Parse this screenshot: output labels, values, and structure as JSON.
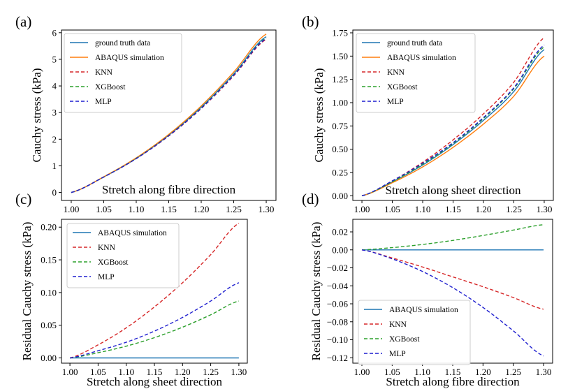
{
  "chart_data": [
    {
      "type": "line",
      "panel_label": "(a)",
      "xlabel": "Stretch along fibre direction",
      "ylabel": "Cauchy stress (kPa)",
      "xlim": [
        0.985,
        1.315
      ],
      "ylim": [
        -0.3,
        6.1
      ],
      "xticks": [
        1.0,
        1.05,
        1.1,
        1.15,
        1.2,
        1.25,
        1.3
      ],
      "xtick_labels": [
        "1.00",
        "1.05",
        "1.10",
        "1.15",
        "1.20",
        "1.25",
        "1.30"
      ],
      "yticks": [
        0,
        1,
        2,
        3,
        4,
        5,
        6
      ],
      "ytick_labels": [
        "0",
        "1",
        "2",
        "3",
        "4",
        "5",
        "6"
      ],
      "legend_position": "top-left",
      "x": [
        1.0,
        1.05,
        1.1,
        1.15,
        1.2,
        1.25,
        1.3
      ],
      "series": [
        {
          "name": "ground truth data",
          "color": "#1f77b4",
          "dash": false,
          "values": [
            0,
            0.58,
            1.28,
            2.15,
            3.2,
            4.45,
            5.85
          ]
        },
        {
          "name": "ABAQUS simulation",
          "color": "#ff7f0e",
          "dash": false,
          "values": [
            0,
            0.59,
            1.3,
            2.18,
            3.25,
            4.52,
            5.95
          ]
        },
        {
          "name": "KNN",
          "color": "#d62728",
          "dash": true,
          "values": [
            0,
            0.58,
            1.27,
            2.12,
            3.15,
            4.38,
            5.75
          ]
        },
        {
          "name": "XGBoost",
          "color": "#2ca02c",
          "dash": true,
          "values": [
            0,
            0.58,
            1.28,
            2.14,
            3.18,
            4.42,
            5.8
          ]
        },
        {
          "name": "MLP",
          "color": "#1f1fcf",
          "dash": true,
          "values": [
            0,
            0.58,
            1.27,
            2.13,
            3.16,
            4.4,
            5.78
          ]
        }
      ]
    },
    {
      "type": "line",
      "panel_label": "(b)",
      "xlabel": "Stretch along sheet direction",
      "ylabel": "Cauchy stress (kPa)",
      "xlim": [
        0.985,
        1.315
      ],
      "ylim": [
        -0.05,
        1.78
      ],
      "xticks": [
        1.0,
        1.05,
        1.1,
        1.15,
        1.2,
        1.25,
        1.3
      ],
      "xtick_labels": [
        "1.00",
        "1.05",
        "1.10",
        "1.15",
        "1.20",
        "1.25",
        "1.30"
      ],
      "yticks": [
        0,
        0.25,
        0.5,
        0.75,
        1.0,
        1.25,
        1.5,
        1.75
      ],
      "ytick_labels": [
        "0.00",
        "0.25",
        "0.50",
        "0.75",
        "1.00",
        "1.25",
        "1.50",
        "1.75"
      ],
      "legend_position": "top-left",
      "x": [
        1.0,
        1.05,
        1.1,
        1.15,
        1.2,
        1.25,
        1.3
      ],
      "series": [
        {
          "name": "ground truth data",
          "color": "#1f77b4",
          "dash": false,
          "values": [
            0,
            0.15,
            0.33,
            0.55,
            0.81,
            1.12,
            1.57
          ]
        },
        {
          "name": "ABAQUS simulation",
          "color": "#ff7f0e",
          "dash": false,
          "values": [
            0,
            0.14,
            0.31,
            0.52,
            0.77,
            1.07,
            1.5
          ]
        },
        {
          "name": "KNN",
          "color": "#d62728",
          "dash": true,
          "values": [
            0,
            0.16,
            0.36,
            0.6,
            0.88,
            1.22,
            1.7
          ]
        },
        {
          "name": "XGBoost",
          "color": "#2ca02c",
          "dash": true,
          "values": [
            0,
            0.15,
            0.34,
            0.56,
            0.83,
            1.15,
            1.6
          ]
        },
        {
          "name": "MLP",
          "color": "#1f1fcf",
          "dash": true,
          "values": [
            0,
            0.16,
            0.35,
            0.57,
            0.84,
            1.16,
            1.62
          ]
        }
      ]
    },
    {
      "type": "line",
      "panel_label": "(c)",
      "xlabel": "Stretch along sheet direction",
      "ylabel": "Residual Cauchy stress (kPa)",
      "xlim": [
        0.985,
        1.315
      ],
      "ylim": [
        -0.008,
        0.212
      ],
      "xticks": [
        1.0,
        1.05,
        1.1,
        1.15,
        1.2,
        1.25,
        1.3
      ],
      "xtick_labels": [
        "1.00",
        "1.05",
        "1.10",
        "1.15",
        "1.20",
        "1.25",
        "1.30"
      ],
      "yticks": [
        0,
        0.05,
        0.1,
        0.15,
        0.2
      ],
      "ytick_labels": [
        "0.00",
        "0.05",
        "0.10",
        "0.15",
        "0.20"
      ],
      "legend_position": "top-left",
      "x": [
        1.0,
        1.05,
        1.1,
        1.15,
        1.2,
        1.25,
        1.3
      ],
      "series": [
        {
          "name": "ABAQUS simulation",
          "color": "#1f77b4",
          "dash": false,
          "values": [
            0,
            0,
            0,
            0,
            0,
            0,
            0
          ]
        },
        {
          "name": "KNN",
          "color": "#d62728",
          "dash": true,
          "values": [
            0,
            0.02,
            0.046,
            0.078,
            0.115,
            0.158,
            0.206
          ]
        },
        {
          "name": "XGBoost",
          "color": "#2ca02c",
          "dash": true,
          "values": [
            0,
            0.008,
            0.018,
            0.031,
            0.047,
            0.066,
            0.087
          ]
        },
        {
          "name": "MLP",
          "color": "#1f1fcf",
          "dash": true,
          "values": [
            0,
            0.011,
            0.024,
            0.041,
            0.062,
            0.087,
            0.115
          ]
        }
      ]
    },
    {
      "type": "line",
      "panel_label": "(d)",
      "xlabel": "Stretch along fibre direction",
      "ylabel": "Residual Cauchy stress (kPa)",
      "xlim": [
        0.985,
        1.315
      ],
      "ylim": [
        -0.126,
        0.034
      ],
      "xticks": [
        1.0,
        1.05,
        1.1,
        1.15,
        1.2,
        1.25,
        1.3
      ],
      "xtick_labels": [
        "1.00",
        "1.05",
        "1.10",
        "1.15",
        "1.20",
        "1.25",
        "1.30"
      ],
      "yticks": [
        0.02,
        0.0,
        -0.02,
        -0.04,
        -0.06,
        -0.08,
        -0.1,
        -0.12
      ],
      "ytick_labels": [
        "0.02",
        "0.00",
        "−0.02",
        "−0.04",
        "−0.06",
        "−0.08",
        "−0.10",
        "−0.12"
      ],
      "legend_position": "lower-left",
      "x": [
        1.0,
        1.05,
        1.1,
        1.15,
        1.2,
        1.25,
        1.3
      ],
      "series": [
        {
          "name": "ABAQUS simulation",
          "color": "#1f77b4",
          "dash": false,
          "values": [
            0,
            0,
            0,
            0,
            0,
            0,
            0
          ]
        },
        {
          "name": "KNN",
          "color": "#d62728",
          "dash": true,
          "values": [
            0,
            -0.009,
            -0.019,
            -0.03,
            -0.041,
            -0.053,
            -0.066
          ]
        },
        {
          "name": "XGBoost",
          "color": "#2ca02c",
          "dash": true,
          "values": [
            0,
            0.0025,
            0.006,
            0.0105,
            0.016,
            0.022,
            0.028
          ]
        },
        {
          "name": "MLP",
          "color": "#1f1fcf",
          "dash": true,
          "values": [
            0,
            -0.01,
            -0.024,
            -0.042,
            -0.064,
            -0.09,
            -0.118
          ]
        }
      ]
    }
  ]
}
